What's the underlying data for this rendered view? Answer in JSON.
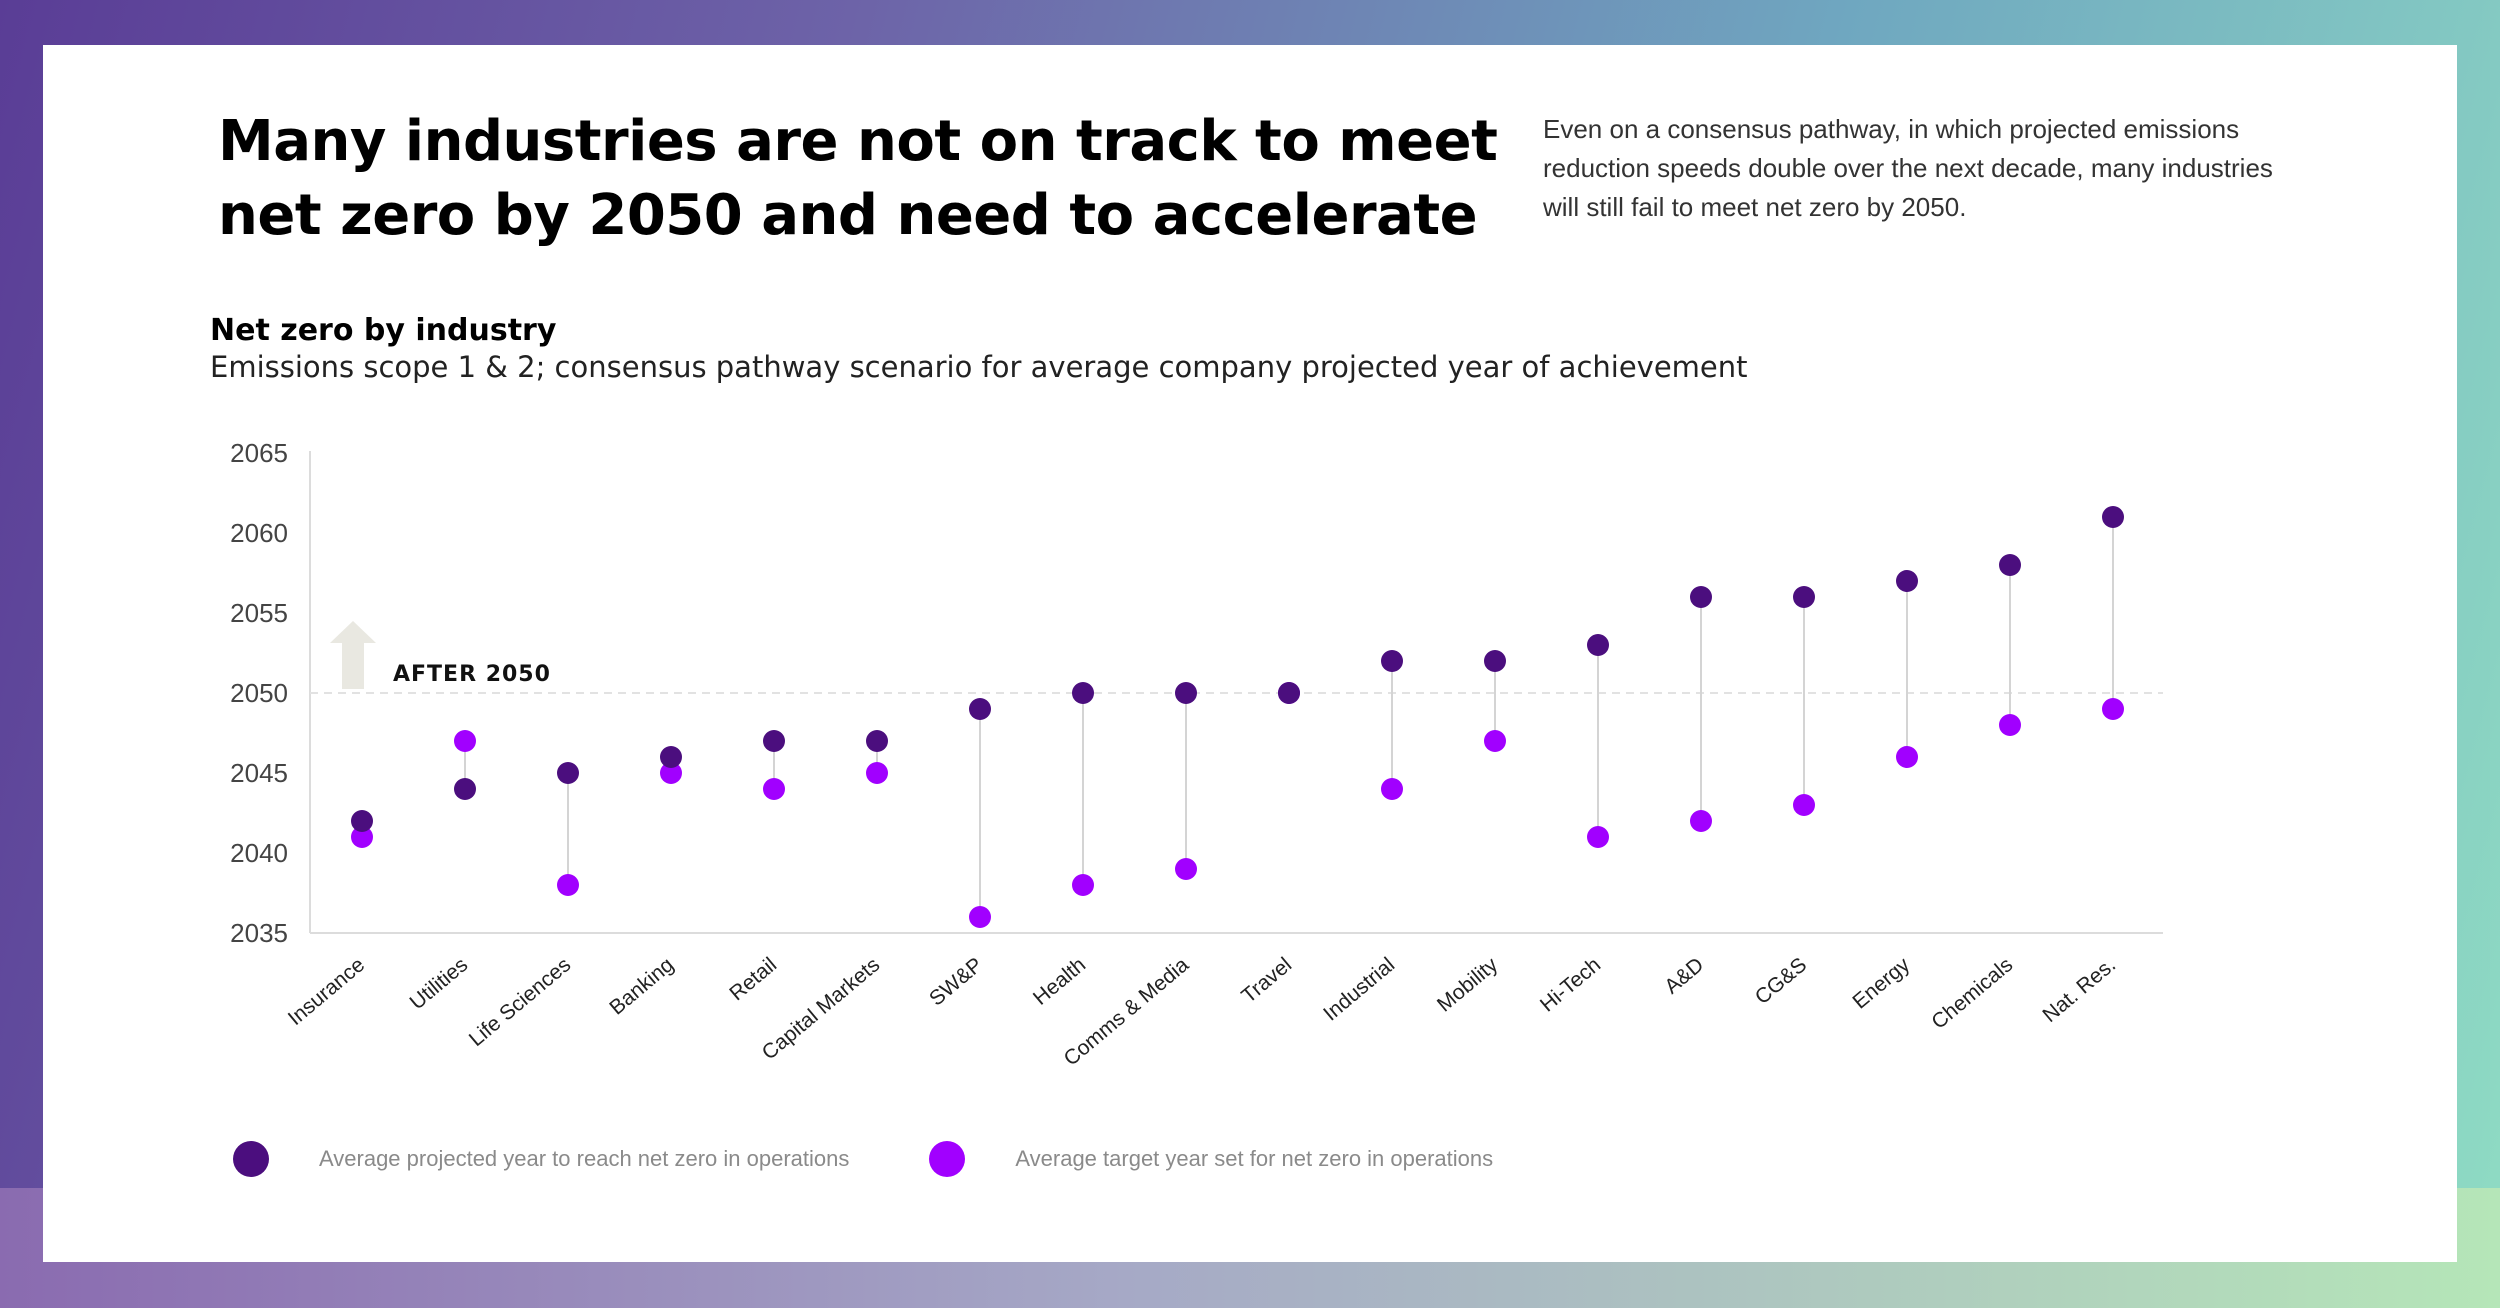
{
  "headline": {
    "line1": "Many industries are not on track to meet",
    "line2": "net zero by 2050 and need to accelerate"
  },
  "intro": "Even on a consensus pathway, in which projected emissions reduction speeds double over the next decade, many industries will still fail to meet net zero by 2050.",
  "colors": {
    "projected": "#4b0e7e",
    "target": "#a100ff",
    "stem": "#d4d4d4",
    "reference": "#e2e2e2",
    "arrow": "#e9e8e1"
  },
  "legend": {
    "projected_label": "Average projected year to reach net zero in operations",
    "target_label": "Average target year set for net zero in operations"
  },
  "chart_data": {
    "type": "scatter",
    "title": "Net zero by industry",
    "subtitle": "Emissions scope 1 & 2; consensus pathway scenario for average company projected year of achievement",
    "categories": [
      "Insurance",
      "Utilities",
      "Life Sciences",
      "Banking",
      "Retail",
      "Capital Markets",
      "SW&P",
      "Health",
      "Comms & Media",
      "Travel",
      "Industrial",
      "Mobility",
      "Hi-Tech",
      "A&D",
      "CG&S",
      "Energy",
      "Chemicals",
      "Nat. Res."
    ],
    "series": [
      {
        "name": "Average projected year to reach net zero in operations",
        "values": [
          2042,
          2044,
          2045,
          2046,
          2047,
          2047,
          2049,
          2050,
          2050,
          2050,
          2052,
          2052,
          2053,
          2056,
          2056,
          2057,
          2058,
          2061
        ]
      },
      {
        "name": "Average target year set for net zero in operations",
        "values": [
          2041,
          2047,
          2038,
          2045,
          2044,
          2045,
          2036,
          2038,
          2039,
          2050,
          2044,
          2047,
          2041,
          2042,
          2043,
          2046,
          2048,
          2049
        ]
      }
    ],
    "yticks": [
      "2065",
      "2060",
      "2055",
      "2050",
      "2045",
      "2040",
      "2035"
    ],
    "ylim": [
      2035,
      2065
    ],
    "reference_line": 2050,
    "annotation": "AFTER 2050",
    "grid": false,
    "legend_position": "bottom-left"
  }
}
